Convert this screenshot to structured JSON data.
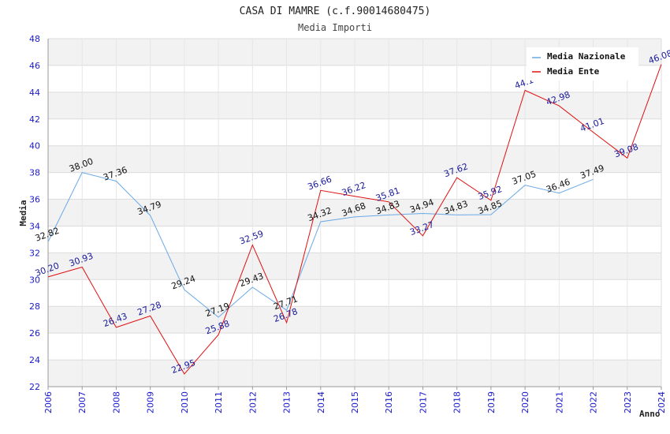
{
  "chart_data": {
    "type": "line",
    "title": "CASA DI MAMRE (c.f.90014680475)",
    "subtitle": "Media Importi",
    "xlabel": "Anno",
    "ylabel": "Media",
    "ylim": [
      22,
      48
    ],
    "yticks": [
      22,
      24,
      26,
      28,
      30,
      32,
      34,
      36,
      38,
      40,
      42,
      44,
      46,
      48
    ],
    "x": [
      "2006",
      "2007",
      "2008",
      "2009",
      "2010",
      "2011",
      "2012",
      "2013",
      "2014",
      "2015",
      "2016",
      "2017",
      "2018",
      "2019",
      "2020",
      "2021",
      "2022",
      "2023",
      "2024"
    ],
    "grid": true,
    "legend_position": "top-right",
    "series": [
      {
        "name": "Media Nazionale",
        "color": "#6aa9e6",
        "values": [
          32.82,
          38.0,
          37.36,
          34.79,
          29.24,
          27.19,
          29.43,
          27.71,
          34.32,
          34.68,
          34.83,
          34.94,
          34.83,
          34.85,
          37.05,
          36.46,
          37.49,
          null,
          null
        ],
        "labels": [
          "32.82",
          "38.00",
          "37.36",
          "34.79",
          "29.24",
          "27.19",
          "29.43",
          "27.71",
          "34.32",
          "34.68",
          "34.83",
          "34.94",
          "34.83",
          "34.85",
          "37.05",
          "36.46",
          "37.49",
          null,
          null
        ]
      },
      {
        "name": "Media Ente",
        "color": "#e01010",
        "values": [
          30.2,
          30.93,
          26.43,
          27.28,
          22.95,
          25.88,
          32.59,
          26.78,
          36.66,
          36.22,
          35.81,
          33.27,
          37.62,
          35.92,
          44.14,
          42.98,
          41.01,
          39.08,
          46.08
        ],
        "labels": [
          "30.20",
          "30.93",
          "26.43",
          "27.28",
          "22.95",
          "25.88",
          "32.59",
          "26.78",
          "36.66",
          "36.22",
          "35.81",
          "33.27",
          "37.62",
          "35.92",
          "44.1",
          "42.98",
          "41.01",
          "39.08",
          "46.08"
        ]
      }
    ]
  }
}
